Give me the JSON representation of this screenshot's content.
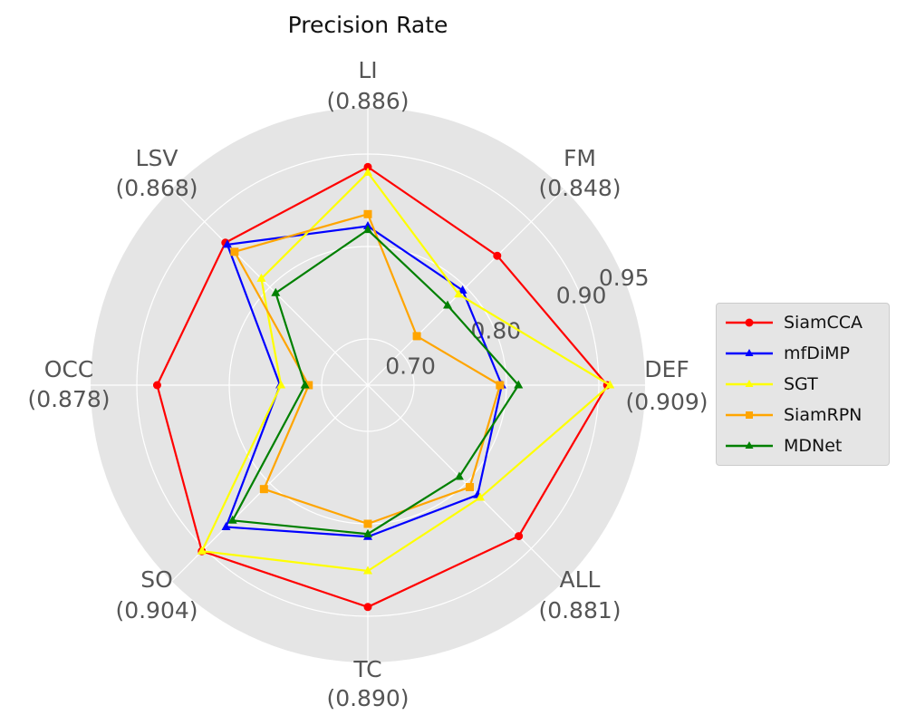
{
  "chart_data": {
    "type": "radar",
    "title": "Precision Rate",
    "categories": [
      "DEF",
      "FM",
      "LI",
      "LSV",
      "OCC",
      "SO",
      "TC",
      "ALL"
    ],
    "category_values": [
      "(0.909)",
      "(0.848)",
      "(0.886)",
      "(0.868)",
      "(0.878)",
      "(0.904)",
      "(0.890)",
      "(0.881)"
    ],
    "radial_ticks": [
      "0.70",
      "0.80",
      "0.90",
      "0.95"
    ],
    "grid": true,
    "legend_position": "right",
    "series": [
      {
        "name": "SiamCCA",
        "color": "#ff0000",
        "marker": "circle",
        "values": [
          0.909,
          0.848,
          0.886,
          0.868,
          0.878,
          0.904,
          0.89,
          0.881
        ]
      },
      {
        "name": "mfDiMP",
        "color": "#0000ff",
        "marker": "triangle",
        "values": [
          0.795,
          0.795,
          0.822,
          0.865,
          0.745,
          0.867,
          0.814,
          0.818
        ]
      },
      {
        "name": "SGT",
        "color": "#ffff00",
        "marker": "triangle",
        "values": [
          0.912,
          0.789,
          0.88,
          0.813,
          0.744,
          0.904,
          0.851,
          0.822
        ]
      },
      {
        "name": "SiamRPN",
        "color": "#ffa500",
        "marker": "square",
        "values": [
          0.793,
          0.725,
          0.835,
          0.854,
          0.714,
          0.809,
          0.8,
          0.806
        ]
      },
      {
        "name": "MDNet",
        "color": "#008000",
        "marker": "triangle",
        "values": [
          0.813,
          0.772,
          0.818,
          0.791,
          0.718,
          0.857,
          0.811,
          0.79
        ]
      }
    ]
  }
}
